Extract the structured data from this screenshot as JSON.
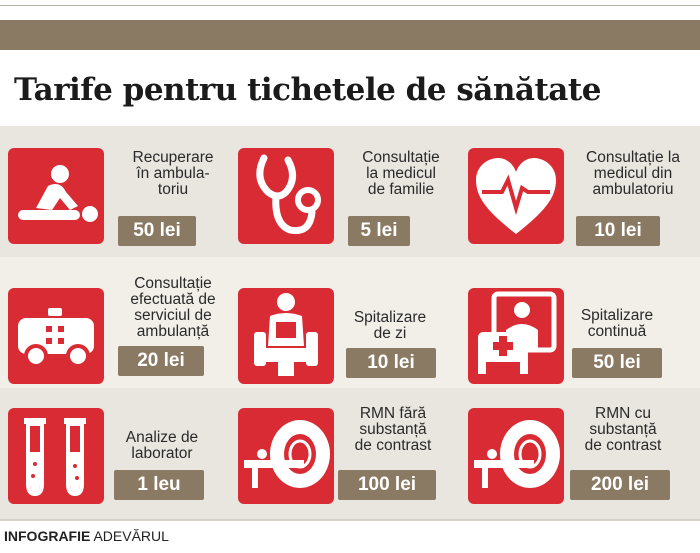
{
  "title": "Tarife pentru tichetele de sănătate",
  "items": [
    {
      "label": "Recuperare\nîn ambula-\ntoriu",
      "price": "50 lei",
      "icon": "rehabilitation-massage-icon"
    },
    {
      "label": "Consultație\nla medicul\nde familie",
      "price": "5 lei",
      "icon": "stethoscope-icon"
    },
    {
      "label": "Consultație la\nmedicul din\nambulatoriu",
      "price": "10 lei",
      "icon": "heart-pulse-icon"
    },
    {
      "label": "Consultație\nefectuată de\nserviciul de\nambulanță",
      "price": "20 lei",
      "icon": "ambulance-icon"
    },
    {
      "label": "Spitalizare\nde zi",
      "price": "10 lei",
      "icon": "day-patient-chair-icon"
    },
    {
      "label": "Spitalizare\ncontinuă",
      "price": "50 lei",
      "icon": "hospital-bed-icon"
    },
    {
      "label": "Analize de\nlaborator",
      "price": "1 leu",
      "icon": "test-tubes-icon"
    },
    {
      "label": "RMN fără\nsubstanță\nde contrast",
      "price": "100 lei",
      "icon": "mri-scanner-icon"
    },
    {
      "label": "RMN cu\nsubstanță\nde contrast",
      "price": "200 lei",
      "icon": "mri-scanner-icon"
    }
  ],
  "footer": {
    "brand_bold": "INFOGRAFIE",
    "brand_regular": "ADEVĂRUL"
  },
  "colors": {
    "accent_red": "#d92b33",
    "price_badge": "#8b7a63",
    "band_light": "#e9e6df"
  }
}
